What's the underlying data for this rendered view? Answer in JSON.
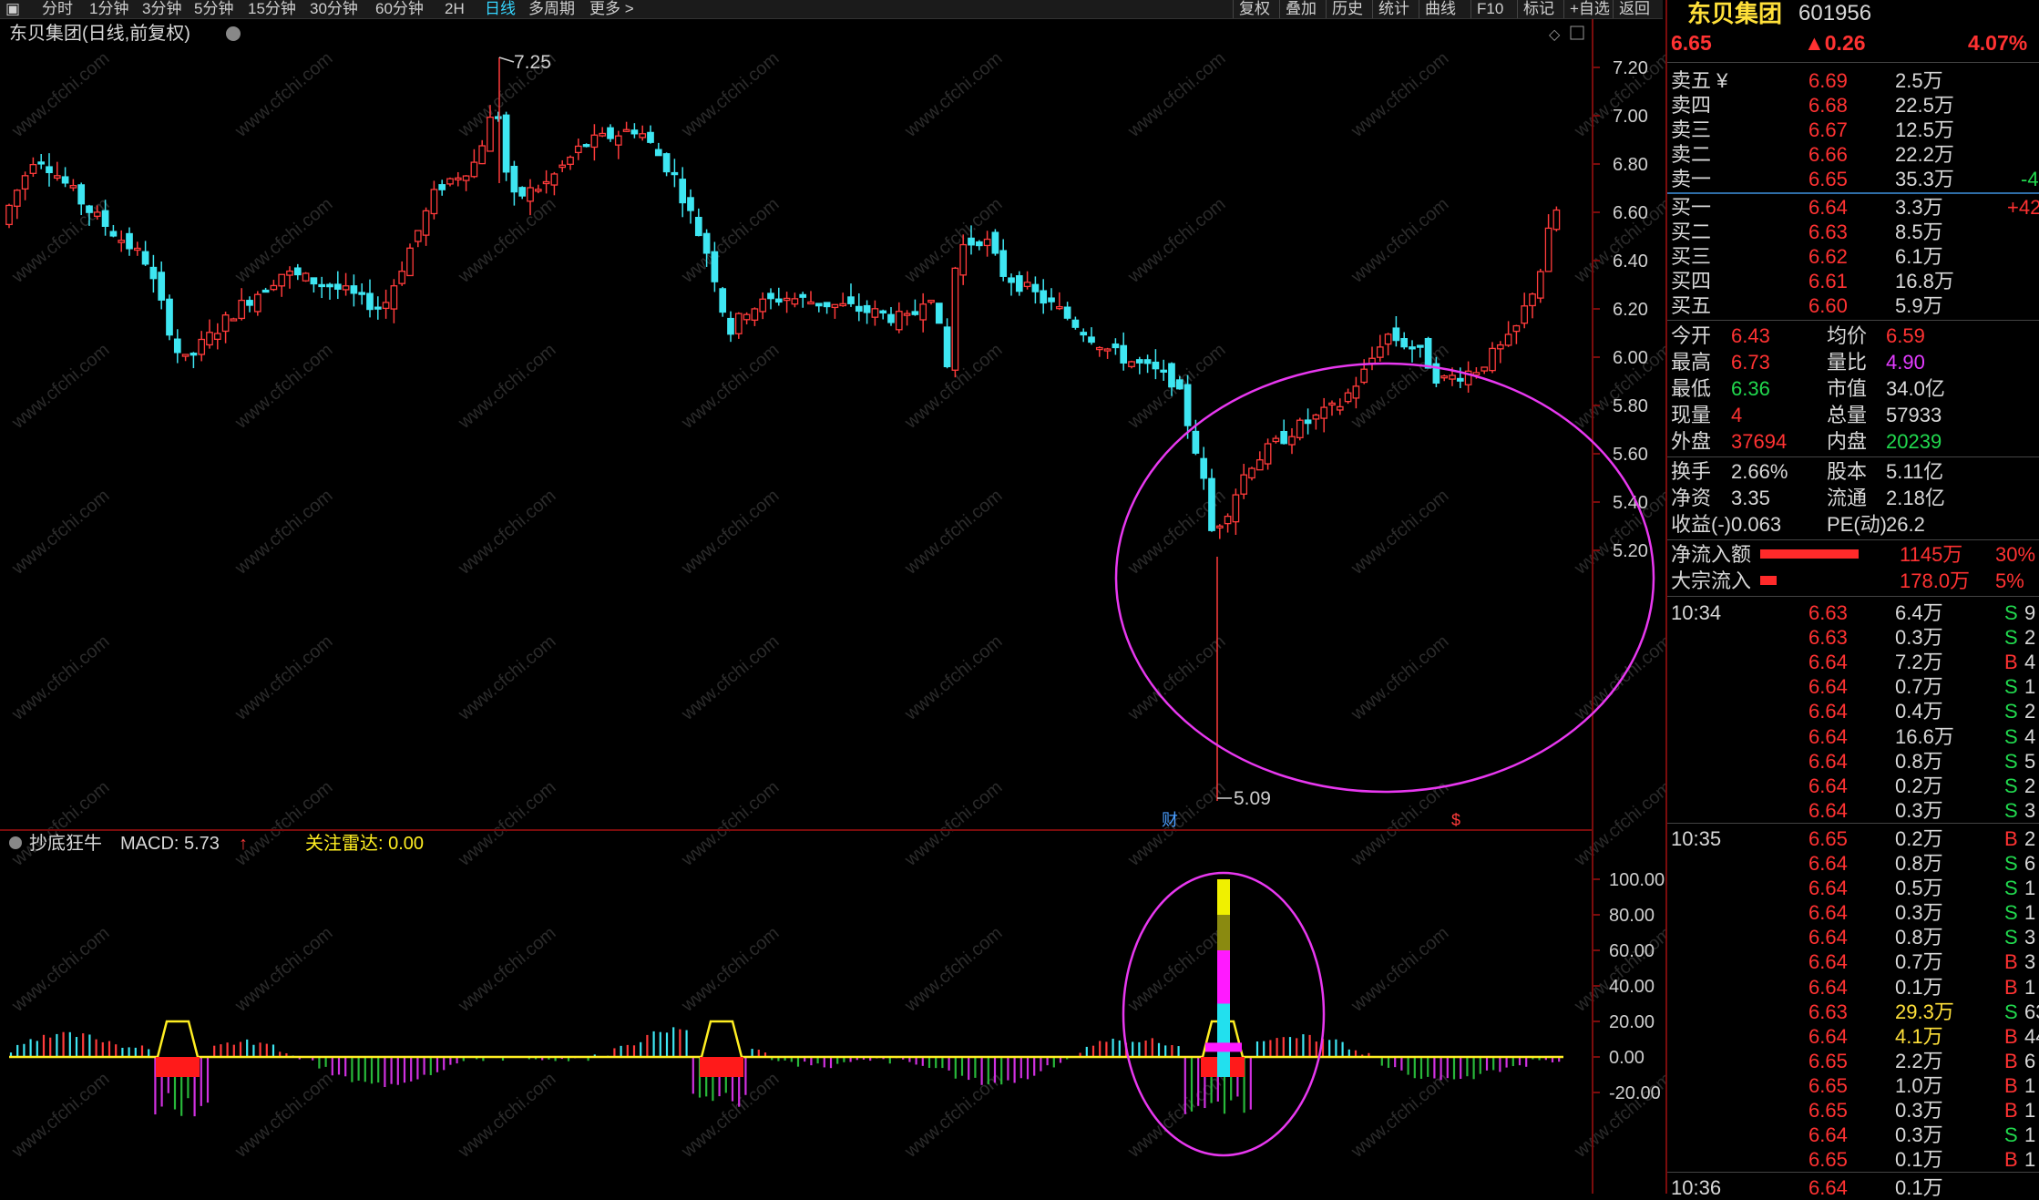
{
  "topbar": {
    "periods": [
      "分时",
      "1分钟",
      "3分钟",
      "5分钟",
      "15分钟",
      "30分钟",
      "60分钟",
      "2H",
      "日线",
      "多周期",
      "更多 >"
    ],
    "active_period": "日线",
    "tools": [
      "复权",
      "叠加",
      "历史",
      "统计",
      "曲线",
      "F10",
      "标记",
      "+自选",
      "返回"
    ]
  },
  "chart": {
    "title": "东贝集团(日线,前复权)",
    "high_label": "7.25",
    "low_label": "5.09",
    "y_ticks": [
      "7.20",
      "7.00",
      "6.80",
      "6.60",
      "6.40",
      "6.20",
      "6.00",
      "5.80",
      "5.60",
      "5.40",
      "5.20"
    ],
    "marker_cai": "财",
    "marker_s": "$",
    "indicator_name": "抄底狂牛",
    "macd_label": "MACD: 5.73",
    "radar_label": "关注雷达: 0.00",
    "ind_ticks": [
      "100.00",
      "80.00",
      "60.00",
      "40.00",
      "20.00",
      "0.00",
      "-20.00"
    ],
    "watermark": "www.cfchi.com",
    "colors": {
      "up": "#ff3b3b",
      "down": "#3ee6f2",
      "circle": "#e838f0",
      "yellow": "#ffee22"
    }
  },
  "quote": {
    "name": "东贝集团",
    "code": "601956",
    "price": "6.65",
    "change": "▲0.26",
    "pct": "4.07%",
    "asks": [
      {
        "label": "卖五 ¥",
        "price": "6.69",
        "vol": "2.5万",
        "diff": ""
      },
      {
        "label": "卖四",
        "price": "6.68",
        "vol": "22.5万",
        "diff": ""
      },
      {
        "label": "卖三",
        "price": "6.67",
        "vol": "12.5万",
        "diff": ""
      },
      {
        "label": "卖二",
        "price": "6.66",
        "vol": "22.2万",
        "diff": ""
      },
      {
        "label": "卖一",
        "price": "6.65",
        "vol": "35.3万",
        "diff": "-4"
      }
    ],
    "bids": [
      {
        "label": "买一",
        "price": "6.64",
        "vol": "3.3万",
        "diff": "+42"
      },
      {
        "label": "买二",
        "price": "6.63",
        "vol": "8.5万",
        "diff": ""
      },
      {
        "label": "买三",
        "price": "6.62",
        "vol": "6.1万",
        "diff": ""
      },
      {
        "label": "买四",
        "price": "6.61",
        "vol": "16.8万",
        "diff": ""
      },
      {
        "label": "买五",
        "price": "6.60",
        "vol": "5.9万",
        "diff": ""
      }
    ],
    "stats": [
      {
        "l1": "今开",
        "v1": "6.43",
        "l2": "均价",
        "v2": "6.59",
        "c1": "red",
        "c2": "red"
      },
      {
        "l1": "最高",
        "v1": "6.73",
        "l2": "量比",
        "v2": "4.90",
        "c1": "red",
        "c2": "mag"
      },
      {
        "l1": "最低",
        "v1": "6.36",
        "l2": "市值",
        "v2": "34.0亿",
        "c1": "grn",
        "c2": "wht"
      },
      {
        "l1": "现量",
        "v1": "4",
        "l2": "总量",
        "v2": "57933",
        "c1": "red",
        "c2": "wht"
      },
      {
        "l1": "外盘",
        "v1": "37694",
        "l2": "内盘",
        "v2": "20239",
        "c1": "red",
        "c2": "grn"
      }
    ],
    "stats2": [
      {
        "l1": "换手",
        "v1": "2.66%",
        "l2": "股本",
        "v2": "5.11亿"
      },
      {
        "l1": "净资",
        "v1": "3.35",
        "l2": "流通",
        "v2": "2.18亿"
      },
      {
        "l1": "收益(-)",
        "v1": "0.063",
        "l2": "PE(动)",
        "v2": "26.2"
      }
    ],
    "flows": [
      {
        "label": "净流入额",
        "val": "1145万",
        "pct": "30%",
        "bar": 0.3
      },
      {
        "label": "大宗流入",
        "val": "178.0万",
        "pct": "5%",
        "bar": 0.05
      }
    ]
  },
  "ticks": [
    {
      "time": "10:34",
      "price": "6.63",
      "vol": "6.4万",
      "bs": "S",
      "n": "9"
    },
    {
      "time": "",
      "price": "6.63",
      "vol": "0.3万",
      "bs": "S",
      "n": "2"
    },
    {
      "time": "",
      "price": "6.64",
      "vol": "7.2万",
      "bs": "B",
      "n": "4"
    },
    {
      "time": "",
      "price": "6.64",
      "vol": "0.7万",
      "bs": "S",
      "n": "1"
    },
    {
      "time": "",
      "price": "6.64",
      "vol": "0.4万",
      "bs": "S",
      "n": "2"
    },
    {
      "time": "",
      "price": "6.64",
      "vol": "16.6万",
      "bs": "S",
      "n": "4"
    },
    {
      "time": "",
      "price": "6.64",
      "vol": "0.8万",
      "bs": "S",
      "n": "5"
    },
    {
      "time": "",
      "price": "6.64",
      "vol": "0.2万",
      "bs": "S",
      "n": "2"
    },
    {
      "time": "",
      "price": "6.64",
      "vol": "0.3万",
      "bs": "S",
      "n": "3"
    },
    {
      "time": "10:35",
      "price": "6.65",
      "vol": "0.2万",
      "bs": "B",
      "n": "2"
    },
    {
      "time": "",
      "price": "6.64",
      "vol": "0.8万",
      "bs": "S",
      "n": "6"
    },
    {
      "time": "",
      "price": "6.64",
      "vol": "0.5万",
      "bs": "S",
      "n": "1"
    },
    {
      "time": "",
      "price": "6.64",
      "vol": "0.3万",
      "bs": "S",
      "n": "1"
    },
    {
      "time": "",
      "price": "6.64",
      "vol": "0.8万",
      "bs": "S",
      "n": "3"
    },
    {
      "time": "",
      "price": "6.64",
      "vol": "0.7万",
      "bs": "B",
      "n": "3"
    },
    {
      "time": "",
      "price": "6.64",
      "vol": "0.1万",
      "bs": "B",
      "n": "1"
    },
    {
      "time": "",
      "price": "6.63",
      "vol": "29.3万",
      "bs": "S",
      "n": "63"
    },
    {
      "time": "",
      "price": "6.64",
      "vol": "4.1万",
      "bs": "B",
      "n": "44"
    },
    {
      "time": "",
      "price": "6.65",
      "vol": "2.2万",
      "bs": "B",
      "n": "6"
    },
    {
      "time": "",
      "price": "6.65",
      "vol": "1.0万",
      "bs": "B",
      "n": "1"
    },
    {
      "time": "",
      "price": "6.65",
      "vol": "0.3万",
      "bs": "B",
      "n": "1"
    },
    {
      "time": "",
      "price": "6.64",
      "vol": "0.3万",
      "bs": "S",
      "n": "1"
    },
    {
      "time": "",
      "price": "6.65",
      "vol": "0.1万",
      "bs": "B",
      "n": "1"
    },
    {
      "time": "10:36",
      "price": "6.64",
      "vol": "0.1万",
      "bs": "",
      "n": ""
    }
  ]
}
